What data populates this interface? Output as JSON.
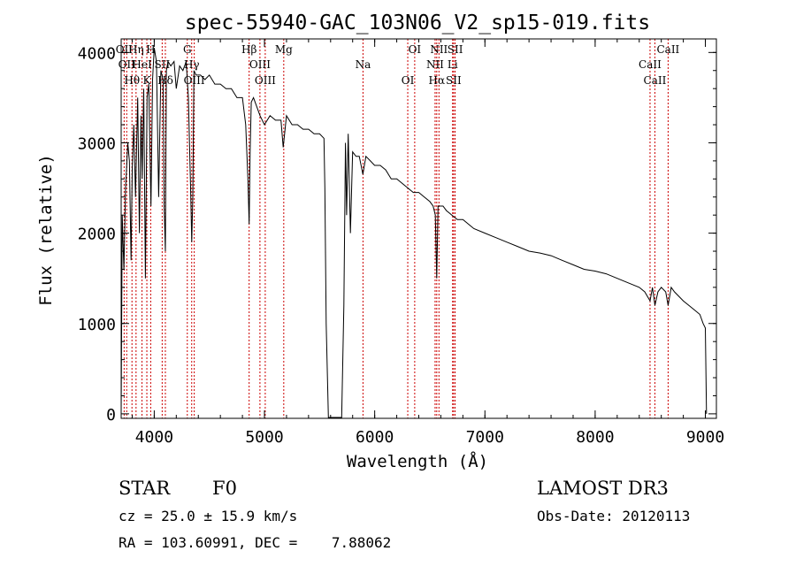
{
  "chart_data": {
    "type": "line",
    "title": "spec-55940-GAC_103N06_V2_sp15-019.fits",
    "xlabel": "Wavelength (Å)",
    "ylabel": "Flux (relative)",
    "xlim": [
      3700,
      9100
    ],
    "ylim": [
      -50,
      4150
    ],
    "xticks": [
      4000,
      5000,
      6000,
      7000,
      8000,
      9000
    ],
    "yticks": [
      0,
      1000,
      2000,
      3000,
      4000
    ],
    "series": [
      {
        "name": "spectrum",
        "x": [
          3700,
          3710,
          3725,
          3740,
          3760,
          3775,
          3790,
          3800,
          3815,
          3830,
          3850,
          3865,
          3880,
          3890,
          3905,
          3920,
          3935,
          3950,
          3960,
          3970,
          3985,
          4000,
          4020,
          4040,
          4060,
          4080,
          4090,
          4101,
          4110,
          4125,
          4150,
          4180,
          4200,
          4230,
          4260,
          4290,
          4310,
          4330,
          4340,
          4350,
          4360,
          4380,
          4420,
          4460,
          4500,
          4550,
          4600,
          4650,
          4700,
          4750,
          4800,
          4830,
          4850,
          4861,
          4870,
          4880,
          4900,
          4930,
          4960,
          5000,
          5050,
          5100,
          5150,
          5170,
          5183,
          5200,
          5250,
          5300,
          5350,
          5400,
          5450,
          5500,
          5540,
          5548,
          5560,
          5580,
          5600,
          5620,
          5640,
          5660,
          5680,
          5700,
          5720,
          5735,
          5745,
          5760,
          5780,
          5800,
          5830,
          5860,
          5893,
          5920,
          5960,
          6000,
          6050,
          6100,
          6150,
          6200,
          6250,
          6300,
          6350,
          6400,
          6450,
          6500,
          6530,
          6550,
          6563,
          6575,
          6590,
          6620,
          6650,
          6700,
          6750,
          6800,
          6850,
          6900,
          7000,
          7100,
          7200,
          7300,
          7400,
          7500,
          7600,
          7700,
          7800,
          7900,
          8000,
          8100,
          8200,
          8300,
          8400,
          8450,
          8498,
          8520,
          8542,
          8570,
          8600,
          8640,
          8662,
          8690,
          8720,
          8760,
          8800,
          8850,
          8900,
          8950,
          8980,
          9000,
          9010
        ],
        "values": [
          0,
          2200,
          1600,
          2500,
          3000,
          2800,
          1700,
          2700,
          3200,
          2400,
          3500,
          2000,
          3300,
          2600,
          3600,
          1500,
          3500,
          3650,
          3000,
          2300,
          3700,
          4050,
          3900,
          2400,
          3800,
          3700,
          2300,
          1800,
          3800,
          3900,
          3850,
          3900,
          3600,
          3850,
          3800,
          3900,
          3500,
          2500,
          1900,
          2400,
          3800,
          3750,
          3750,
          3700,
          3750,
          3650,
          3650,
          3600,
          3600,
          3500,
          3500,
          3200,
          2600,
          2100,
          2900,
          3450,
          3500,
          3400,
          3300,
          3200,
          3300,
          3250,
          3250,
          2950,
          3100,
          3300,
          3200,
          3200,
          3150,
          3150,
          3100,
          3100,
          3050,
          2500,
          1000,
          -40,
          -40,
          -40,
          -40,
          -40,
          -40,
          -40,
          1200,
          3000,
          2200,
          3100,
          2000,
          2900,
          2850,
          2850,
          2650,
          2850,
          2800,
          2750,
          2750,
          2700,
          2600,
          2600,
          2550,
          2500,
          2450,
          2450,
          2400,
          2350,
          2300,
          2200,
          1500,
          2300,
          2300,
          2300,
          2250,
          2200,
          2150,
          2150,
          2100,
          2050,
          2000,
          1950,
          1900,
          1850,
          1800,
          1780,
          1750,
          1700,
          1650,
          1600,
          1580,
          1550,
          1500,
          1450,
          1400,
          1350,
          1250,
          1400,
          1200,
          1350,
          1400,
          1350,
          1200,
          1400,
          1350,
          1300,
          1250,
          1200,
          1150,
          1100,
          1000,
          950,
          0
        ]
      }
    ],
    "line_markers": [
      {
        "wavelength": 3727,
        "label": "OII"
      },
      {
        "wavelength": 3750,
        "label": "OII"
      },
      {
        "wavelength": 3798,
        "label": "Hθ"
      },
      {
        "wavelength": 3835,
        "label": "Hη"
      },
      {
        "wavelength": 3889,
        "label": "HeI"
      },
      {
        "wavelength": 3933,
        "label": "K"
      },
      {
        "wavelength": 3968,
        "label": "H"
      },
      {
        "wavelength": 4072,
        "label": "SII"
      },
      {
        "wavelength": 4101,
        "label": "Hδ"
      },
      {
        "wavelength": 4300,
        "label": "G"
      },
      {
        "wavelength": 4340,
        "label": "Hγ"
      },
      {
        "wavelength": 4363,
        "label": "OIII"
      },
      {
        "wavelength": 4861,
        "label": "Hβ"
      },
      {
        "wavelength": 4959,
        "label": "OIII"
      },
      {
        "wavelength": 5007,
        "label": "OIII"
      },
      {
        "wavelength": 5175,
        "label": "Mg"
      },
      {
        "wavelength": 5894,
        "label": "Na"
      },
      {
        "wavelength": 6300,
        "label": "OI"
      },
      {
        "wavelength": 6363,
        "label": "OI"
      },
      {
        "wavelength": 6548,
        "label": "NII"
      },
      {
        "wavelength": 6563,
        "label": "Hα"
      },
      {
        "wavelength": 6583,
        "label": "NII"
      },
      {
        "wavelength": 6707,
        "label": "Li"
      },
      {
        "wavelength": 6716,
        "label": "SII"
      },
      {
        "wavelength": 6730,
        "label": "SII"
      },
      {
        "wavelength": 8498,
        "label": "CaII"
      },
      {
        "wavelength": 8542,
        "label": "CaII"
      },
      {
        "wavelength": 8662,
        "label": "CaII"
      }
    ]
  },
  "info": {
    "class": "STAR",
    "subclass": "F0",
    "cz": "cz = 25.0 ± 15.9 km/s",
    "coords": "RA = 103.60991, DEC =    7.88062",
    "survey": "LAMOST DR3",
    "obs_date": "Obs-Date: 20120113"
  },
  "colors": {
    "spectrum": "#000000",
    "marker": "#cc0000",
    "axis": "#000000"
  }
}
